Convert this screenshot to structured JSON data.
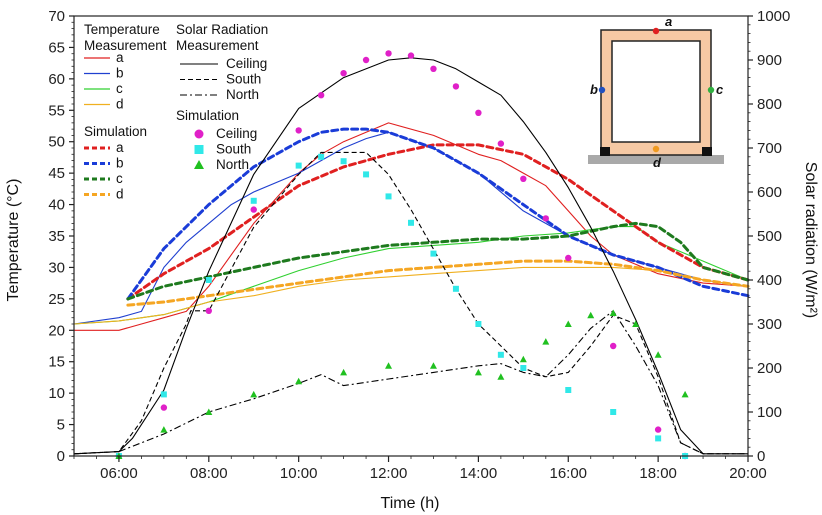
{
  "chart_data": {
    "type": "line",
    "xlabel": "Time (h)",
    "ylabel_left": "Temperature (°C)",
    "ylabel_right": "Solar radiation (W/m²)",
    "x_range_hours": [
      5,
      20
    ],
    "ylim_left": [
      0,
      70
    ],
    "ylim_right": [
      0,
      1000
    ],
    "x_ticks": [
      "06:00",
      "08:00",
      "10:00",
      "12:00",
      "14:00",
      "16:00",
      "18:00",
      "20:00"
    ],
    "y_ticks_left": [
      "0",
      "5",
      "10",
      "15",
      "20",
      "25",
      "30",
      "35",
      "40",
      "45",
      "50",
      "55",
      "60",
      "65",
      "70"
    ],
    "y_ticks_right": [
      "0",
      "100",
      "200",
      "300",
      "400",
      "500",
      "600",
      "700",
      "800",
      "900",
      "1000"
    ],
    "legend": {
      "temp_header": "Temperature",
      "temp_header2": "Measurement",
      "solar_header": "Solar Radiation",
      "solar_header2": "Measurement",
      "sim_header": "Simulation",
      "sim_solar_header": "Simulation",
      "temp_meas": [
        "a",
        "b",
        "c",
        "d"
      ],
      "temp_sim": [
        "a",
        "b",
        "c",
        "d"
      ],
      "solar_meas": [
        "Ceiling",
        "South",
        "North"
      ],
      "solar_sim": [
        "Ceiling",
        "South",
        "North"
      ]
    },
    "inset_labels": [
      "a",
      "b",
      "c",
      "d"
    ],
    "colors": {
      "a": "#e02020",
      "b": "#2040d0",
      "c": "#30d030",
      "d": "#f0b020",
      "sim_a": "#e02020",
      "sim_b": "#1a3cd8",
      "sim_c": "#1e7a1e",
      "sim_d": "#f5a623",
      "ceiling_sim": "#e020c8",
      "south_sim": "#30e8e8",
      "north_sim": "#20c020",
      "solar_meas": "#000000",
      "room_wall": "#f6c9a4"
    },
    "series": [
      {
        "name": "a",
        "axis": "left",
        "kind": "temp_meas",
        "x": [
          5.0,
          6.0,
          6.5,
          7.0,
          7.5,
          8.0,
          9.0,
          10.0,
          10.5,
          11.0,
          11.5,
          12.0,
          13.0,
          14.0,
          14.5,
          15.0,
          15.5,
          16.0,
          16.5,
          17.0,
          18.0,
          19.0,
          20.0
        ],
        "y": [
          20,
          20,
          21,
          22,
          23,
          27,
          37,
          45,
          48,
          50,
          51.5,
          53,
          51,
          48,
          47,
          45,
          43,
          39,
          35,
          32,
          29,
          27.5,
          27
        ]
      },
      {
        "name": "b",
        "axis": "left",
        "kind": "temp_meas",
        "x": [
          5.0,
          6.0,
          6.5,
          7.0,
          7.5,
          8.0,
          8.5,
          9.0,
          10.0,
          10.5,
          11.0,
          11.5,
          12.0,
          13.0,
          14.0,
          15.0,
          16.0,
          17.0,
          18.0,
          19.0,
          20.0
        ],
        "y": [
          21,
          22,
          23,
          30,
          34,
          37,
          40,
          42,
          45,
          47,
          49,
          50.5,
          51.5,
          49,
          45,
          39,
          35,
          32,
          30,
          28,
          27
        ]
      },
      {
        "name": "c",
        "axis": "left",
        "kind": "temp_meas",
        "x": [
          5.0,
          6.0,
          7.0,
          8.0,
          9.0,
          10.0,
          11.0,
          12.0,
          13.0,
          14.0,
          15.0,
          16.0,
          16.5,
          17.0,
          17.5,
          18.0,
          19.0,
          20.0
        ],
        "y": [
          21,
          21.5,
          22.5,
          24.5,
          27,
          29.5,
          31.5,
          33,
          33.5,
          34,
          35,
          35.5,
          36,
          36.5,
          36.5,
          34,
          31,
          28
        ]
      },
      {
        "name": "d",
        "axis": "left",
        "kind": "temp_meas",
        "x": [
          5.0,
          6.0,
          7.0,
          8.0,
          9.0,
          10.0,
          11.0,
          12.0,
          13.0,
          14.0,
          15.0,
          16.0,
          17.0,
          18.0,
          19.0,
          20.0
        ],
        "y": [
          21,
          21.5,
          22.5,
          24.5,
          25.5,
          27,
          28,
          28.5,
          29,
          29.5,
          30,
          30,
          30,
          29.5,
          28,
          27
        ]
      },
      {
        "name": "a",
        "axis": "left",
        "kind": "temp_sim",
        "x": [
          6.2,
          7.0,
          8.0,
          9.0,
          10.0,
          11.0,
          12.0,
          13.0,
          14.0,
          15.0,
          16.0,
          17.0,
          18.0,
          19.0,
          20.0
        ],
        "y": [
          25,
          29,
          33,
          38,
          43,
          46,
          48,
          49.5,
          49.5,
          48,
          44,
          39,
          34,
          30,
          28
        ]
      },
      {
        "name": "b",
        "axis": "left",
        "kind": "temp_sim",
        "x": [
          6.2,
          7.0,
          8.0,
          9.0,
          10.0,
          10.5,
          11.0,
          11.5,
          12.0,
          13.0,
          14.0,
          15.0,
          16.0,
          17.0,
          18.0,
          19.0,
          20.0
        ],
        "y": [
          25,
          33,
          40,
          46,
          50,
          51.5,
          52,
          52,
          51.5,
          49,
          45,
          40,
          35,
          32,
          30,
          27,
          25.5
        ]
      },
      {
        "name": "c",
        "axis": "left",
        "kind": "temp_sim",
        "x": [
          6.2,
          7.0,
          8.0,
          9.0,
          10.0,
          11.0,
          12.0,
          13.0,
          14.0,
          15.0,
          16.0,
          17.0,
          17.5,
          18.0,
          18.5,
          19.0,
          20.0
        ],
        "y": [
          25,
          27,
          28.5,
          30,
          31.5,
          32.5,
          33.5,
          34,
          34.5,
          34.5,
          35,
          36.5,
          37,
          36.5,
          34,
          30,
          28
        ]
      },
      {
        "name": "d",
        "axis": "left",
        "kind": "temp_sim",
        "x": [
          6.2,
          7.0,
          8.0,
          9.0,
          10.0,
          11.0,
          12.0,
          13.0,
          14.0,
          15.0,
          16.0,
          17.0,
          18.0,
          19.0,
          20.0
        ],
        "y": [
          24,
          24.5,
          25.5,
          26.5,
          27.5,
          28.5,
          29.5,
          30,
          30.5,
          31,
          31,
          30.5,
          29.5,
          28,
          27
        ]
      },
      {
        "name": "Ceiling",
        "axis": "right",
        "kind": "solar_meas",
        "x": [
          5.0,
          6.0,
          6.3,
          7.0,
          7.5,
          8.0,
          9.0,
          10.0,
          11.0,
          12.0,
          12.5,
          13.0,
          13.5,
          14.0,
          14.5,
          15.0,
          15.5,
          16.0,
          16.5,
          17.0,
          17.5,
          18.0,
          18.5,
          19.0,
          20.0
        ],
        "y": [
          5,
          10,
          40,
          150,
          290,
          420,
          640,
          790,
          860,
          900,
          905,
          900,
          880,
          850,
          820,
          760,
          690,
          610,
          520,
          420,
          310,
          190,
          60,
          5,
          5
        ]
      },
      {
        "name": "South",
        "axis": "right",
        "kind": "solar_meas",
        "x": [
          5.0,
          6.0,
          6.5,
          7.0,
          7.5,
          7.6,
          8.0,
          9.0,
          10.0,
          10.5,
          11.0,
          11.5,
          12.0,
          12.5,
          13.0,
          13.5,
          14.0,
          14.5,
          15.0,
          15.5,
          16.0,
          16.5,
          17.0,
          17.5,
          18.0,
          18.5,
          19.0,
          20.0
        ],
        "y": [
          5,
          10,
          80,
          200,
          300,
          330,
          330,
          520,
          640,
          690,
          690,
          690,
          640,
          560,
          470,
          380,
          300,
          250,
          200,
          180,
          190,
          250,
          320,
          300,
          180,
          30,
          5,
          5
        ]
      },
      {
        "name": "North",
        "axis": "right",
        "kind": "solar_meas",
        "x": [
          5.0,
          6.0,
          7.0,
          8.0,
          9.0,
          10.0,
          10.5,
          11.0,
          12.0,
          13.0,
          14.0,
          14.5,
          15.0,
          15.5,
          16.0,
          16.5,
          17.0,
          17.5,
          18.0,
          18.5,
          19.0,
          20.0
        ],
        "y": [
          5,
          10,
          50,
          100,
          130,
          165,
          185,
          160,
          175,
          190,
          205,
          210,
          190,
          180,
          230,
          290,
          330,
          250,
          160,
          30,
          5,
          5
        ]
      },
      {
        "name": "Ceiling",
        "axis": "right",
        "kind": "solar_sim",
        "x": [
          6.0,
          7.0,
          8.0,
          9.0,
          10.0,
          10.5,
          11.0,
          11.5,
          12.0,
          12.5,
          13.0,
          13.5,
          14.0,
          14.5,
          15.0,
          15.5,
          16.0,
          17.0,
          18.0,
          18.6
        ],
        "y": [
          0,
          110,
          330,
          560,
          740,
          820,
          870,
          900,
          915,
          910,
          880,
          840,
          780,
          710,
          630,
          540,
          450,
          250,
          60,
          0
        ]
      },
      {
        "name": "South",
        "axis": "right",
        "kind": "solar_sim",
        "x": [
          6.0,
          7.0,
          8.0,
          9.0,
          10.0,
          10.5,
          11.0,
          11.5,
          12.0,
          12.5,
          13.0,
          13.5,
          14.0,
          14.5,
          15.0,
          16.0,
          17.0,
          18.0,
          18.6
        ],
        "y": [
          0,
          140,
          400,
          580,
          660,
          680,
          670,
          640,
          590,
          530,
          460,
          380,
          300,
          230,
          200,
          150,
          100,
          40,
          0
        ]
      },
      {
        "name": "North",
        "axis": "right",
        "kind": "solar_sim",
        "x": [
          6.0,
          7.0,
          8.0,
          9.0,
          10.0,
          11.0,
          12.0,
          13.0,
          14.0,
          14.5,
          15.0,
          15.5,
          16.0,
          16.5,
          17.0,
          17.5,
          18.0,
          18.6
        ],
        "y": [
          0,
          60,
          100,
          140,
          170,
          190,
          205,
          205,
          190,
          180,
          220,
          260,
          300,
          320,
          325,
          300,
          230,
          140
        ]
      }
    ]
  }
}
